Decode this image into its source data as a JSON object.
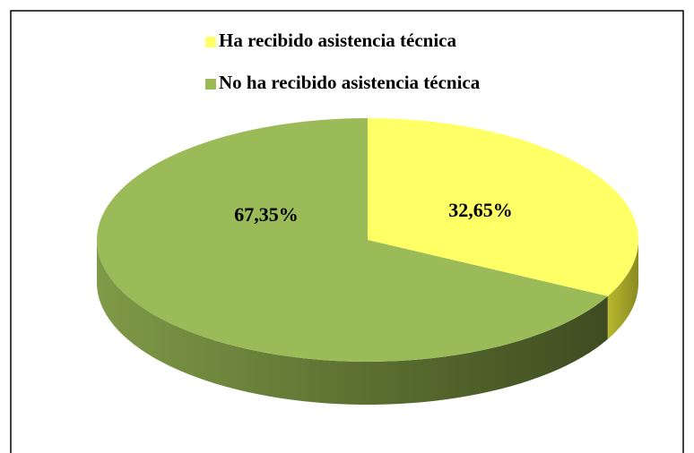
{
  "chart_data": {
    "type": "pie3d",
    "categories": [
      "Ha recibido asistencia técnica",
      "No ha recibido asistencia técnica"
    ],
    "values": [
      32.65,
      67.35
    ],
    "value_labels": [
      "32,65%",
      "67,35%"
    ],
    "colors": [
      "#ffff66",
      "#9bbb59"
    ],
    "legend": "top"
  }
}
